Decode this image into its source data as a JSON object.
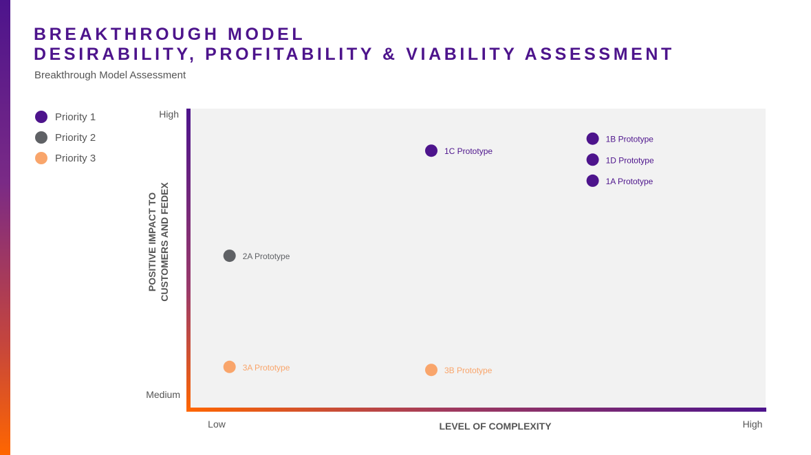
{
  "header": {
    "title_line1": "BREAKTHROUGH MODEL",
    "title_line2": "DESIRABILITY, PROFITABILITY & VIABILITY ASSESSMENT",
    "subtitle": "Breakthrough Model Assessment"
  },
  "colors": {
    "priority1": "#4d148c",
    "priority2": "#5f6165",
    "priority3": "#f9a56b",
    "plot_bg": "#f2f2f2",
    "accent_purple": "#4d148c",
    "accent_orange": "#ff6600"
  },
  "legend": [
    {
      "label": "Priority 1",
      "color": "#4d148c"
    },
    {
      "label": "Priority 2",
      "color": "#5f6165"
    },
    {
      "label": "Priority 3",
      "color": "#f9a56b"
    }
  ],
  "chart_data": {
    "type": "scatter",
    "title": "Breakthrough Model Assessment",
    "xlabel": "LEVEL OF COMPLEXITY",
    "ylabel": [
      "POSITIVE IMPACT TO",
      "CUSTOMERS AND FEDEX"
    ],
    "x_tick_labels": [
      "Low",
      "High"
    ],
    "y_tick_labels": [
      "Medium",
      "High"
    ],
    "xlim": [
      0,
      100
    ],
    "ylim": [
      0,
      100
    ],
    "legend_position": "top-left",
    "points": [
      {
        "label": "1B Prototype",
        "priority": 1,
        "x": 70,
        "y": 90
      },
      {
        "label": "1C Prototype",
        "priority": 1,
        "x": 42,
        "y": 86
      },
      {
        "label": "1D Prototype",
        "priority": 1,
        "x": 70,
        "y": 83
      },
      {
        "label": "1A Prototype",
        "priority": 1,
        "x": 70,
        "y": 76
      },
      {
        "label": "2A Prototype",
        "priority": 2,
        "x": 7,
        "y": 51
      },
      {
        "label": "3A Prototype",
        "priority": 3,
        "x": 7,
        "y": 14
      },
      {
        "label": "3B Prototype",
        "priority": 3,
        "x": 42,
        "y": 13
      }
    ]
  }
}
